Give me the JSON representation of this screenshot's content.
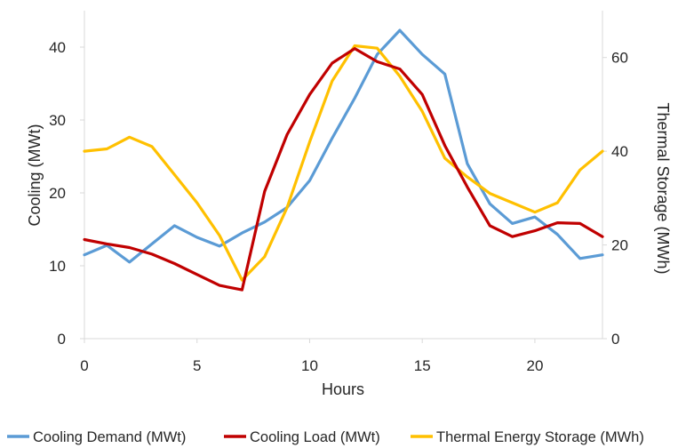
{
  "chart_data": {
    "type": "line",
    "title": "",
    "xlabel": "Hours",
    "ylabel_left": "Cooling (MWt)",
    "ylabel_right": "Thermal Storage (MWh)",
    "xlim": [
      0,
      23
    ],
    "ylim_left": [
      0,
      45
    ],
    "ylim_right": [
      0,
      70
    ],
    "x_ticks": [
      0,
      5,
      10,
      15,
      20
    ],
    "y_left_ticks": [
      0,
      10,
      20,
      30,
      40
    ],
    "y_right_ticks": [
      0,
      20,
      40,
      60
    ],
    "grid": false,
    "legend_position": "bottom",
    "x": [
      0,
      1,
      2,
      3,
      4,
      5,
      6,
      7,
      8,
      9,
      10,
      11,
      12,
      13,
      14,
      15,
      16,
      17,
      18,
      19,
      20,
      21,
      22,
      23
    ],
    "series": [
      {
        "name": "Cooling Demand (MWt)",
        "axis": "left",
        "color": "#5b9bd5",
        "values": [
          11.5,
          12.8,
          10.5,
          13.0,
          15.5,
          13.9,
          12.7,
          14.5,
          16.0,
          18.0,
          21.7,
          27.5,
          33.0,
          39.0,
          42.3,
          39.0,
          36.3,
          24.0,
          18.5,
          15.8,
          16.7,
          14.3,
          11.0,
          11.5
        ]
      },
      {
        "name": "Cooling Load (MWt)",
        "axis": "left",
        "color": "#c00000",
        "values": [
          13.6,
          13.0,
          12.5,
          11.6,
          10.3,
          8.8,
          7.3,
          6.7,
          20.2,
          28.0,
          33.5,
          37.8,
          39.8,
          38.0,
          37.0,
          33.5,
          26.5,
          20.8,
          15.5,
          14.0,
          14.8,
          15.9,
          15.8,
          14.0
        ]
      },
      {
        "name": "Thermal Energy Storage (MWh)",
        "axis": "right",
        "color": "#ffc000",
        "values": [
          40.0,
          40.5,
          43.0,
          41.0,
          35.0,
          29.0,
          22.0,
          12.5,
          17.5,
          28.0,
          42.0,
          55.0,
          62.5,
          62.0,
          56.0,
          48.5,
          38.5,
          34.5,
          31.0,
          29.0,
          27.0,
          29.0,
          36.0,
          40.0
        ]
      }
    ]
  }
}
